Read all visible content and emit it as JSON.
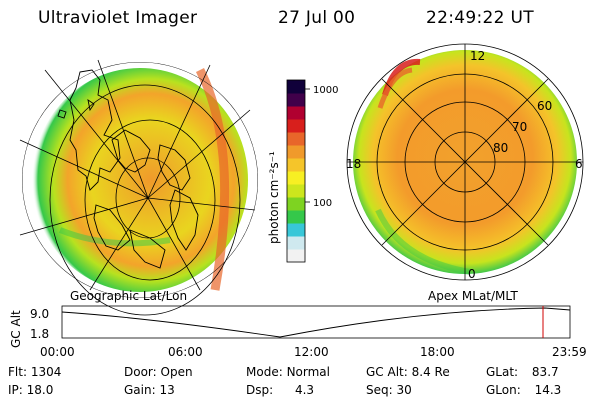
{
  "header": {
    "instrument": "Ultraviolet Imager",
    "date": "27 Jul 00",
    "time": "22:49:22 UT"
  },
  "colorbar": {
    "unit_label": "photon cm⁻²s⁻¹",
    "ticks": [
      "1000",
      "100"
    ]
  },
  "left_panel": {
    "projection_label": "Geographic Lat/Lon"
  },
  "right_panel": {
    "projection_label": "Apex MLat/MLT",
    "mlt_labels": {
      "top": "12",
      "left": "18",
      "right": "6",
      "bottom": "0"
    },
    "mlat_labels": [
      "60",
      "70",
      "80"
    ]
  },
  "orbit_plot": {
    "ylabel": "GC Alt",
    "y_ticks": [
      "9.0",
      "1.8"
    ],
    "x_ticks": [
      "00:00",
      "06:00",
      "12:00",
      "18:00",
      "23:59"
    ],
    "marker_color": "#d00000"
  },
  "status": {
    "flt_label": "Flt:",
    "flt_value": "1304",
    "ip_label": "IP:",
    "ip_value": "18.0",
    "door_label": "Door:",
    "door_value": "Open",
    "gain_label": "Gain:",
    "gain_value": "13",
    "mode_label": "Mode:",
    "mode_value": "Normal",
    "dsp_label": "Dsp:",
    "dsp_value": "4.3",
    "gcalt_label": "GC Alt:",
    "gcalt_value": "8.4 Re",
    "seq_label": "Seq:",
    "seq_value": "30",
    "glat_label": "GLat:",
    "glat_value": "83.7",
    "glon_label": "GLon:",
    "glon_value": "14.3"
  },
  "colors": {
    "colormap": [
      "#f2f2f2",
      "#cfe9ef",
      "#38c7d8",
      "#35c84a",
      "#7ed321",
      "#cde61d",
      "#f7ef23",
      "#f5c52a",
      "#f09a2b",
      "#e8662a",
      "#d81f1c",
      "#b00030",
      "#40004a",
      "#10003a"
    ]
  }
}
